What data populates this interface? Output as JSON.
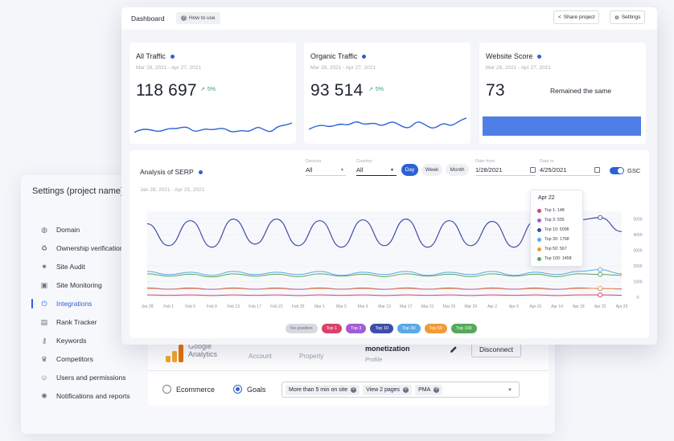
{
  "settings": {
    "title": "Settings (project name)",
    "nav": [
      {
        "label": "Domain",
        "icon": "globe-icon",
        "glyph": "◍"
      },
      {
        "label": "Ownership verification",
        "icon": "check-badge-icon",
        "glyph": "♻"
      },
      {
        "label": "Site Audit",
        "icon": "bug-icon",
        "glyph": "✷"
      },
      {
        "label": "Site Monitoring",
        "icon": "monitor-icon",
        "glyph": "▣"
      },
      {
        "label": "Integrations",
        "icon": "plug-icon",
        "glyph": "⏻"
      },
      {
        "label": "Rank Tracker",
        "icon": "tracker-icon",
        "glyph": "▤"
      },
      {
        "label": "Keywords",
        "icon": "key-icon",
        "glyph": "⚷"
      },
      {
        "label": "Competitors",
        "icon": "trophy-icon",
        "glyph": "♛"
      },
      {
        "label": "Users and permissions",
        "icon": "user-icon",
        "glyph": "☺"
      },
      {
        "label": "Notifications and reports",
        "icon": "bell-icon",
        "glyph": "✺"
      }
    ],
    "active_index": 4,
    "integration": {
      "logo_text_1": "Google",
      "logo_text_2": "Analytics",
      "account_label": "Account",
      "property_label": "Property",
      "property_value": "monetization",
      "profile_label": "Profile",
      "disconnect_label": "Disconnect"
    },
    "goals": {
      "option_ecommerce": "Ecommerce",
      "option_goals": "Goals",
      "selected": "Goals",
      "chips": [
        "More than 5 min on site",
        "View 2 pages",
        "PMA"
      ]
    }
  },
  "dashboard": {
    "title": "Dashboard",
    "how_to_use": "How to use",
    "share_label": "Share project",
    "settings_label": "Settings",
    "kpis": [
      {
        "title": "All Traffic",
        "date": "Mar 28, 2021 - Apr 27, 2021",
        "value": "118 697",
        "change": "5%"
      },
      {
        "title": "Organic Traffic",
        "date": "Mar 28, 2021 - Apr 27, 2021",
        "value": "93 514",
        "change": "5%"
      },
      {
        "title": "Website Score",
        "date": "Mar 28, 2021 - Apr 27, 2021",
        "value": "73",
        "status": "Remained the same"
      }
    ],
    "serp": {
      "title": "Analysis of SERP",
      "date_range": "Jan 28, 2021 - Apr 25, 2021",
      "devices_label": "Devices",
      "devices_value": "All",
      "country_label": "Country:",
      "country_value": "All",
      "periods": [
        "Day",
        "Week",
        "Month"
      ],
      "active_period": "Day",
      "date_from_label": "Date from",
      "date_from": "1/28/2021",
      "date_to_label": "Date to",
      "date_to": "4/25/2021",
      "gsc_label": "GSC",
      "tooltip": {
        "date": "Apr 22",
        "rows": [
          {
            "label": "Top 1: 148",
            "color": "#d9416b"
          },
          {
            "label": "Top 3: 555",
            "color": "#a25bd6"
          },
          {
            "label": "Top 10: 5096",
            "color": "#3d4da8"
          },
          {
            "label": "Top 30: 1768",
            "color": "#5aa9e6"
          },
          {
            "label": "Top 50: 567",
            "color": "#f29a38"
          },
          {
            "label": "Top 100: 1458",
            "color": "#55a85a"
          }
        ]
      },
      "legend": [
        {
          "label": "No position",
          "color": "#d6d9df",
          "text": "#6b7180"
        },
        {
          "label": "Top 1",
          "color": "#d9416b",
          "text": "#ffffff"
        },
        {
          "label": "Top 3",
          "color": "#a25bd6",
          "text": "#ffffff"
        },
        {
          "label": "Top 10",
          "color": "#3d4da8",
          "text": "#ffffff"
        },
        {
          "label": "Top 30",
          "color": "#5aa9e6",
          "text": "#ffffff"
        },
        {
          "label": "Top 50",
          "color": "#f29a38",
          "text": "#ffffff"
        },
        {
          "label": "Top 100",
          "color": "#55a85a",
          "text": "#ffffff"
        }
      ]
    }
  },
  "chart_data": {
    "type": "line",
    "x": [
      "Jan 28",
      "Feb 1",
      "Feb 5",
      "Feb 9",
      "Feb 13",
      "Feb 17",
      "Feb 21",
      "Feb 25",
      "Mar 1",
      "Mar 5",
      "Mar 9",
      "Mar 13",
      "Mar 17",
      "Mar 21",
      "Mar 25",
      "Mar 29",
      "Apr 2",
      "Apr 6",
      "Apr 10",
      "Apr 14",
      "Apr 18",
      "Apr 22",
      "Apr 25"
    ],
    "y_ticks": [
      "0",
      "1000",
      "2000",
      "3000",
      "4000",
      "5000"
    ],
    "ylim": [
      0,
      5500
    ],
    "series": [
      {
        "name": "Top 10",
        "color": "#3d4da8",
        "values": [
          4700,
          3300,
          4900,
          3200,
          5000,
          3400,
          5000,
          3300,
          4900,
          3200,
          4950,
          3300,
          5000,
          3200,
          4900,
          3300,
          4850,
          3200,
          4900,
          3300,
          4950,
          5096,
          4200
        ]
      },
      {
        "name": "Top 30",
        "color": "#5aa9e6",
        "values": [
          1650,
          1450,
          1600,
          1400,
          1650,
          1450,
          1600,
          1450,
          1650,
          1400,
          1600,
          1450,
          1650,
          1400,
          1600,
          1450,
          1650,
          1400,
          1600,
          1450,
          1650,
          1768,
          1500
        ]
      },
      {
        "name": "Top 100",
        "color": "#55a85a",
        "values": [
          1500,
          1350,
          1480,
          1300,
          1500,
          1350,
          1480,
          1320,
          1500,
          1350,
          1480,
          1320,
          1500,
          1350,
          1480,
          1320,
          1500,
          1350,
          1480,
          1320,
          1500,
          1458,
          1400
        ]
      },
      {
        "name": "Top 3",
        "color": "#a25bd6",
        "values": [
          600,
          520,
          590,
          510,
          600,
          520,
          590,
          510,
          600,
          520,
          590,
          510,
          600,
          520,
          590,
          510,
          600,
          520,
          590,
          510,
          600,
          555,
          540
        ]
      },
      {
        "name": "Top 50",
        "color": "#f29a38",
        "values": [
          560,
          500,
          550,
          490,
          560,
          500,
          550,
          490,
          560,
          500,
          550,
          490,
          560,
          500,
          550,
          490,
          560,
          500,
          550,
          490,
          560,
          567,
          520
        ]
      },
      {
        "name": "Top 1",
        "color": "#d9416b",
        "values": [
          150,
          120,
          150,
          110,
          150,
          120,
          150,
          110,
          150,
          120,
          150,
          110,
          150,
          120,
          150,
          110,
          150,
          120,
          150,
          110,
          150,
          148,
          130
        ]
      }
    ]
  }
}
